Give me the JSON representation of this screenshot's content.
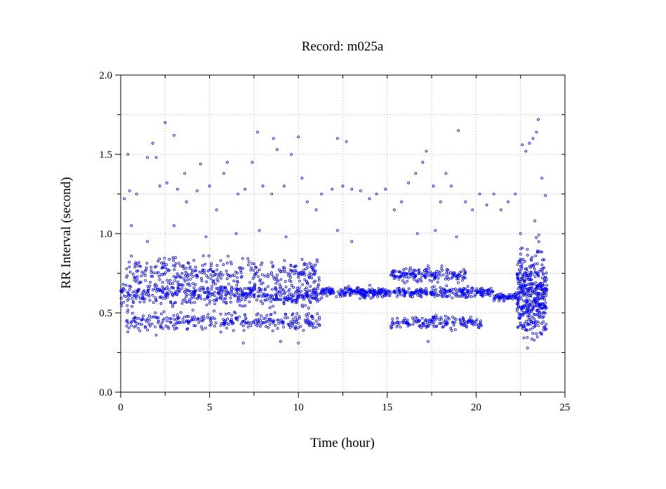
{
  "chart_data": {
    "type": "scatter",
    "title": "Record:  m025a",
    "xlabel": "Time (hour)",
    "ylabel": "RR Interval (second)",
    "xlim": [
      0,
      25
    ],
    "ylim": [
      0,
      2.0
    ],
    "x_ticks": [
      0,
      5,
      10,
      15,
      20,
      25
    ],
    "x_tick_labels": [
      "0",
      "5",
      "10",
      "15",
      "20",
      "25"
    ],
    "y_ticks": [
      0.0,
      0.5,
      1.0,
      1.5,
      2.0
    ],
    "y_tick_labels": [
      "0.0",
      "0.5",
      "1.0",
      "1.5",
      "2.0"
    ],
    "grid": true,
    "point_color": "#0000ff",
    "series": [
      {
        "bands": [
          {
            "x": [
              0.0,
              11.2
            ],
            "center": 0.62,
            "spread": 0.035,
            "density": 520
          },
          {
            "x": [
              0.3,
              11.2
            ],
            "center": 0.76,
            "spread": 0.04,
            "density": 300
          },
          {
            "x": [
              0.3,
              11.2
            ],
            "center": 0.45,
            "spread": 0.03,
            "density": 300
          },
          {
            "x": [
              11.2,
              21.0
            ],
            "center": 0.63,
            "spread": 0.015,
            "density": 420
          },
          {
            "x": [
              15.2,
              19.4
            ],
            "center": 0.74,
            "spread": 0.02,
            "density": 160
          },
          {
            "x": [
              15.2,
              20.3
            ],
            "center": 0.44,
            "spread": 0.02,
            "density": 160
          },
          {
            "x": [
              21.0,
              22.3
            ],
            "center": 0.6,
            "spread": 0.012,
            "density": 60
          },
          {
            "x": [
              22.3,
              24.0
            ],
            "center": 0.62,
            "spread": 0.13,
            "density": 420
          }
        ],
        "outliers": [
          [
            0.2,
            1.22
          ],
          [
            0.4,
            1.5
          ],
          [
            0.5,
            1.27
          ],
          [
            0.9,
            1.25
          ],
          [
            1.5,
            1.48
          ],
          [
            1.8,
            1.57
          ],
          [
            2.0,
            1.48
          ],
          [
            2.2,
            1.3
          ],
          [
            2.5,
            1.7
          ],
          [
            2.6,
            1.32
          ],
          [
            3.0,
            1.62
          ],
          [
            3.2,
            1.28
          ],
          [
            3.6,
            1.38
          ],
          [
            3.7,
            1.2
          ],
          [
            4.3,
            1.27
          ],
          [
            4.5,
            1.44
          ],
          [
            5.0,
            1.3
          ],
          [
            5.4,
            1.15
          ],
          [
            5.8,
            1.38
          ],
          [
            6.0,
            1.45
          ],
          [
            6.6,
            1.25
          ],
          [
            7.0,
            1.28
          ],
          [
            7.4,
            1.45
          ],
          [
            7.7,
            1.64
          ],
          [
            8.0,
            1.3
          ],
          [
            8.5,
            1.25
          ],
          [
            8.6,
            1.6
          ],
          [
            8.8,
            1.53
          ],
          [
            9.2,
            1.3
          ],
          [
            9.6,
            1.5
          ],
          [
            10.0,
            1.61
          ],
          [
            10.2,
            1.35
          ],
          [
            10.5,
            1.2
          ],
          [
            11.0,
            1.15
          ],
          [
            11.3,
            1.25
          ],
          [
            11.9,
            1.28
          ],
          [
            12.2,
            1.6
          ],
          [
            12.5,
            1.3
          ],
          [
            12.7,
            1.58
          ],
          [
            13.0,
            1.28
          ],
          [
            13.5,
            1.27
          ],
          [
            14.0,
            1.22
          ],
          [
            14.4,
            1.25
          ],
          [
            14.9,
            1.28
          ],
          [
            15.4,
            1.15
          ],
          [
            15.8,
            1.2
          ],
          [
            16.2,
            1.32
          ],
          [
            16.6,
            1.38
          ],
          [
            17.0,
            1.45
          ],
          [
            17.2,
            1.52
          ],
          [
            17.6,
            1.3
          ],
          [
            18.0,
            1.2
          ],
          [
            18.3,
            1.38
          ],
          [
            18.6,
            1.3
          ],
          [
            19.0,
            1.65
          ],
          [
            19.4,
            1.2
          ],
          [
            19.8,
            1.15
          ],
          [
            20.2,
            1.25
          ],
          [
            20.6,
            1.18
          ],
          [
            21.0,
            1.25
          ],
          [
            21.4,
            1.15
          ],
          [
            21.8,
            1.2
          ],
          [
            22.2,
            1.25
          ],
          [
            22.6,
            1.56
          ],
          [
            22.8,
            1.52
          ],
          [
            23.0,
            1.57
          ],
          [
            23.2,
            1.6
          ],
          [
            23.4,
            1.64
          ],
          [
            23.5,
            1.72
          ],
          [
            23.7,
            1.35
          ],
          [
            23.9,
            1.24
          ],
          [
            0.4,
            0.38
          ],
          [
            2.0,
            0.36
          ],
          [
            6.9,
            0.31
          ],
          [
            9.0,
            0.32
          ],
          [
            10.0,
            0.31
          ],
          [
            17.3,
            0.32
          ],
          [
            0.6,
            1.05
          ],
          [
            1.5,
            0.95
          ],
          [
            3.0,
            1.05
          ],
          [
            4.8,
            0.98
          ],
          [
            6.5,
            1.0
          ],
          [
            7.8,
            1.02
          ],
          [
            9.3,
            0.98
          ],
          [
            12.2,
            1.02
          ],
          [
            13.0,
            0.95
          ],
          [
            16.7,
            1.0
          ],
          [
            17.7,
            1.02
          ],
          [
            18.9,
            0.98
          ],
          [
            22.5,
            1.0
          ],
          [
            23.3,
            1.08
          ]
        ]
      }
    ]
  }
}
